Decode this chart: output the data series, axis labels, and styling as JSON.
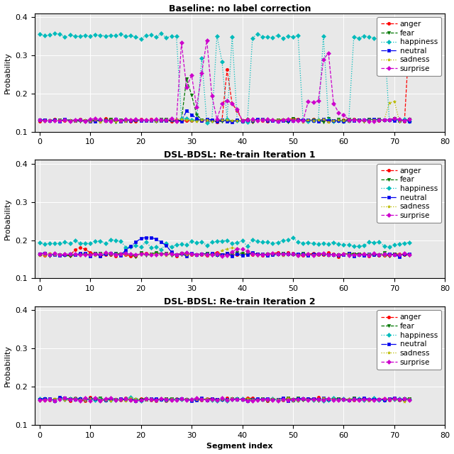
{
  "titles": [
    "Baseline: no label correction",
    "DSL-BDSL: Re-train Iteration 1",
    "DSL-BDSL: Re-train Iteration 2"
  ],
  "xlabel": "Segment index",
  "ylabel": "Probability",
  "xlim": [
    -1,
    80
  ],
  "ylim": [
    0.1,
    0.41
  ],
  "yticks": [
    0.1,
    0.2,
    0.3,
    0.4
  ],
  "xticks": [
    0,
    10,
    20,
    30,
    40,
    50,
    60,
    70,
    80
  ],
  "emotions": [
    "anger",
    "fear",
    "happiness",
    "neutral",
    "sadness",
    "surprise"
  ],
  "colors": [
    "#ff0000",
    "#007700",
    "#00bbbb",
    "#0000ee",
    "#bbbb00",
    "#cc00cc"
  ],
  "linestyles": [
    "--",
    "--",
    ":",
    "-.",
    ":",
    "--"
  ],
  "markers": [
    "o",
    "v",
    "D",
    "s",
    "*",
    "D"
  ],
  "n_segments": 74,
  "background_color": "#e8e8e8",
  "title_fontsize": 9,
  "label_fontsize": 8,
  "legend_fontsize": 7.5,
  "marker_size": 3,
  "line_width": 0.9
}
